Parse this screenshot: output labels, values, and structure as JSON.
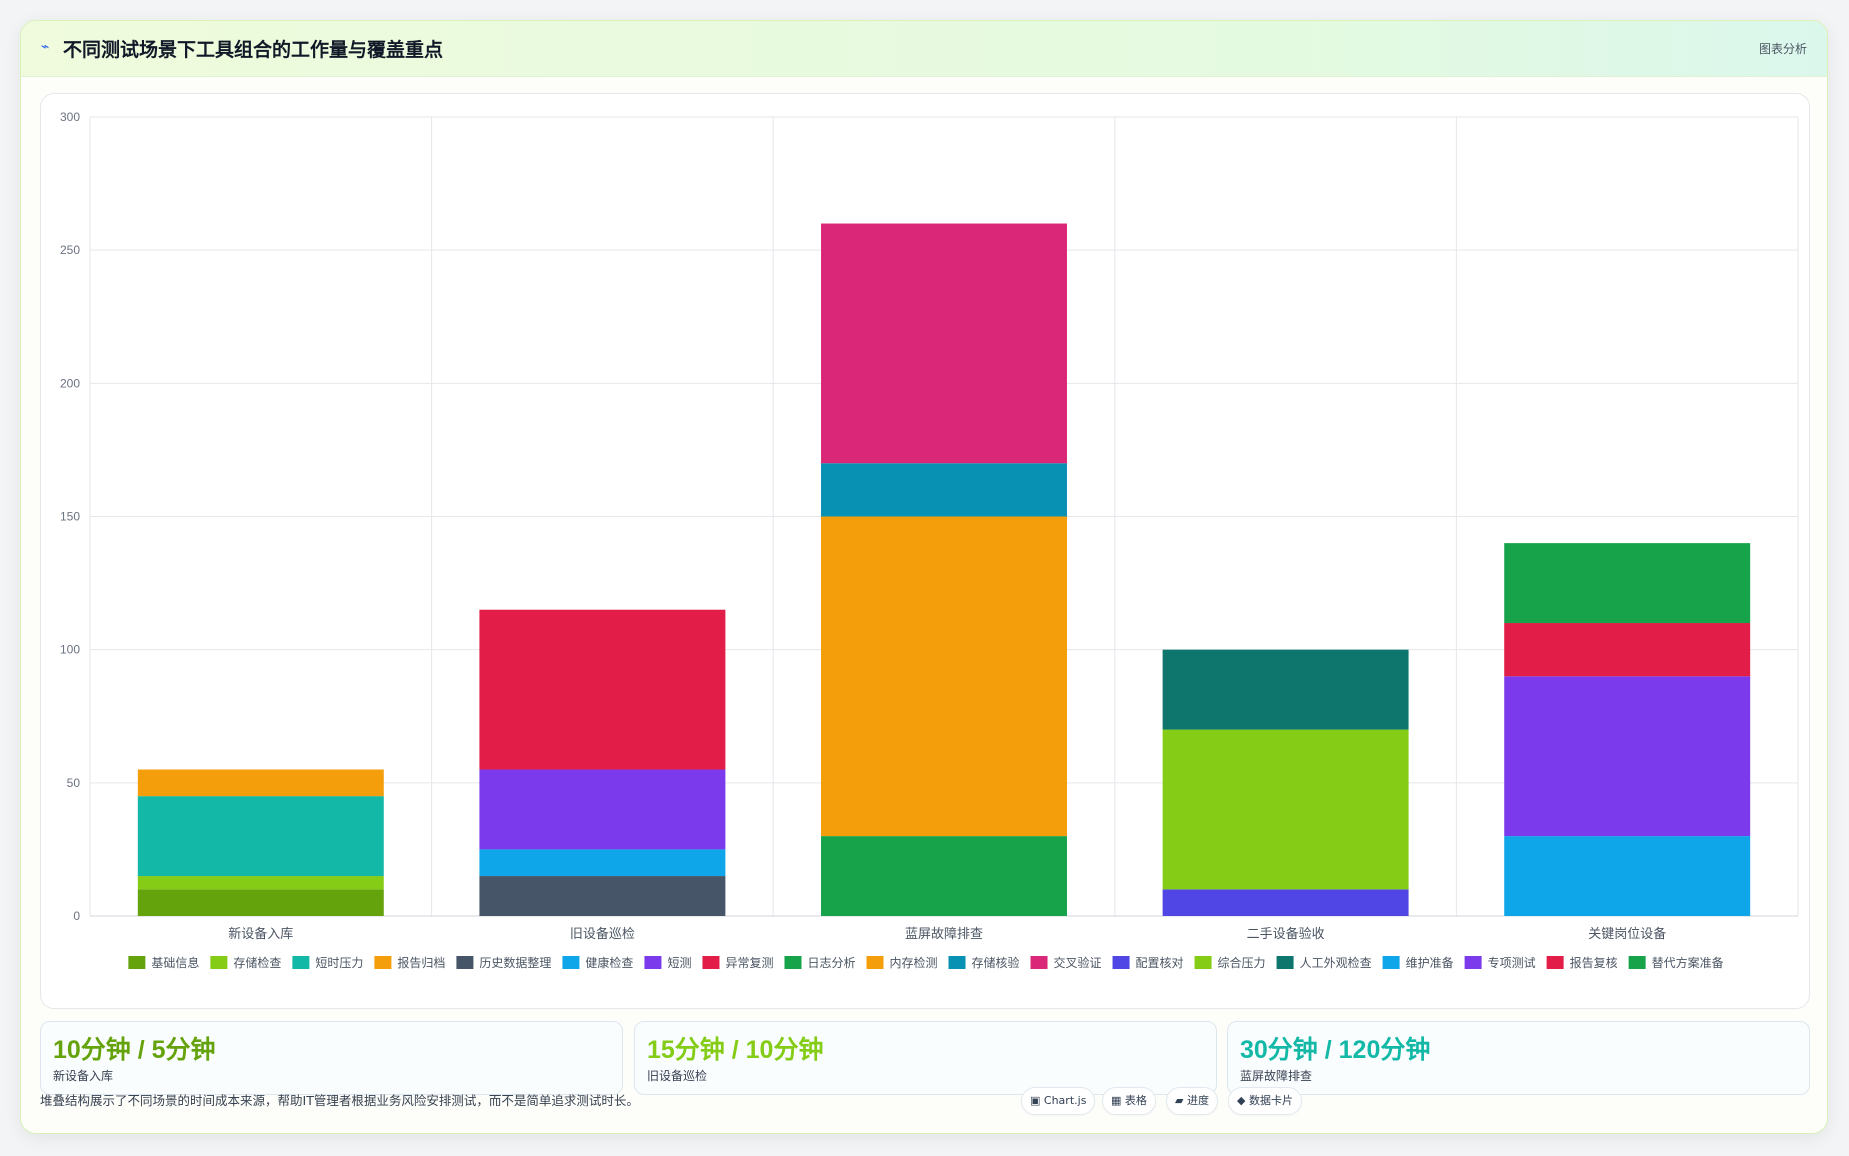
{
  "header": {
    "icon": "⌁",
    "title": "不同测试场景下工具组合的工作量与覆盖重点",
    "tag": "图表分析"
  },
  "chart_data": {
    "type": "bar",
    "stacked": true,
    "categories": [
      "新设备入库",
      "旧设备巡检",
      "蓝屏故障排查",
      "二手设备验收",
      "关键岗位设备"
    ],
    "ylim": [
      0,
      300
    ],
    "yticks": [
      0,
      50,
      100,
      150,
      200,
      250,
      300
    ],
    "grid": true,
    "legend_position": "bottom",
    "series": [
      {
        "name": "基础信息",
        "color": "#65a30d",
        "values": [
          10,
          0,
          0,
          0,
          0
        ]
      },
      {
        "name": "存储检查",
        "color": "#84cc16",
        "values": [
          5,
          0,
          0,
          0,
          0
        ]
      },
      {
        "name": "短时压力",
        "color": "#14b8a6",
        "values": [
          30,
          0,
          0,
          0,
          0
        ]
      },
      {
        "name": "报告归档",
        "color": "#f59e0b",
        "values": [
          10,
          0,
          0,
          0,
          0
        ]
      },
      {
        "name": "历史数据整理",
        "color": "#475569",
        "values": [
          0,
          15,
          0,
          0,
          0
        ]
      },
      {
        "name": "健康检查",
        "color": "#0ea5e9",
        "values": [
          0,
          10,
          0,
          0,
          0
        ]
      },
      {
        "name": "短测",
        "color": "#7c3aed",
        "values": [
          0,
          30,
          0,
          0,
          0
        ]
      },
      {
        "name": "异常复测",
        "color": "#e11d48",
        "values": [
          0,
          60,
          0,
          0,
          0
        ]
      },
      {
        "name": "日志分析",
        "color": "#16a34a",
        "values": [
          0,
          0,
          30,
          0,
          0
        ]
      },
      {
        "name": "内存检测",
        "color": "#f59e0b",
        "values": [
          0,
          0,
          120,
          0,
          0
        ]
      },
      {
        "name": "存储核验",
        "color": "#0891b2",
        "values": [
          0,
          0,
          20,
          0,
          0
        ]
      },
      {
        "name": "交叉验证",
        "color": "#db2777",
        "values": [
          0,
          0,
          90,
          0,
          0
        ]
      },
      {
        "name": "配置核对",
        "color": "#4f46e5",
        "values": [
          0,
          0,
          0,
          10,
          0
        ]
      },
      {
        "name": "综合压力",
        "color": "#84cc16",
        "values": [
          0,
          0,
          0,
          60,
          0
        ]
      },
      {
        "name": "人工外观检查",
        "color": "#0f766e",
        "values": [
          0,
          0,
          0,
          30,
          0
        ]
      },
      {
        "name": "维护准备",
        "color": "#0ea5e9",
        "values": [
          0,
          0,
          0,
          0,
          30
        ]
      },
      {
        "name": "专项测试",
        "color": "#7c3aed",
        "values": [
          0,
          0,
          0,
          0,
          60
        ]
      },
      {
        "name": "报告复核",
        "color": "#e11d48",
        "values": [
          0,
          0,
          0,
          0,
          20
        ]
      },
      {
        "name": "替代方案准备",
        "color": "#16a34a",
        "values": [
          0,
          0,
          0,
          0,
          30
        ]
      }
    ]
  },
  "metrics": [
    {
      "value": "10分钟 / 5分钟",
      "label": "新设备入库",
      "color": "#65a30d"
    },
    {
      "value": "15分钟 / 10分钟",
      "label": "旧设备巡检",
      "color": "#84cc16"
    },
    {
      "value": "30分钟 / 120分钟",
      "label": "蓝屏故障排查",
      "color": "#14b8a6"
    }
  ],
  "footnote": "堆叠结构展示了不同场景的时间成本来源，帮助IT管理者根据业务风险安排测试，而不是简单追求测试时长。",
  "chips": [
    {
      "icon": "▣",
      "label": "Chart.js"
    },
    {
      "icon": "▦",
      "label": "表格"
    },
    {
      "icon": "▰",
      "label": "进度"
    },
    {
      "icon": "◆",
      "label": "数据卡片"
    }
  ]
}
